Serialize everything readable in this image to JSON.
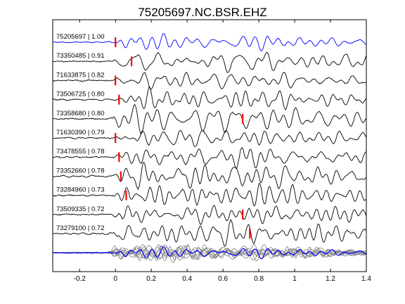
{
  "chart_data": {
    "type": "line",
    "title": "75205697.NC.BSR.EHZ",
    "xlabel": "",
    "ylabel": "",
    "xlim": [
      -0.35,
      1.4
    ],
    "x_ticks": [
      "-0.2",
      "0",
      "0.2",
      "0.4",
      "0.6",
      "0.8",
      "1",
      "1.2",
      "1.4"
    ],
    "x_tick_values": [
      -0.2,
      0,
      0.2,
      0.4,
      0.6,
      0.8,
      1.0,
      1.2,
      1.4
    ],
    "grid": false,
    "traces": [
      {
        "label": "75205697 | 1.00",
        "pick_time": 0.0,
        "color": "#0000ff"
      },
      {
        "label": "73350485 | 0.91",
        "pick_time": 0.09,
        "color": "#000000"
      },
      {
        "label": "71633875 | 0.82",
        "pick_time": 0.0,
        "color": "#000000"
      },
      {
        "label": "73506725 | 0.80",
        "pick_time": 0.02,
        "color": "#000000"
      },
      {
        "label": "73358680 | 0.80",
        "pick_time": 0.71,
        "color": "#000000"
      },
      {
        "label": "71630390 | 0.79",
        "pick_time": 0.0,
        "color": "#000000"
      },
      {
        "label": "73478555 | 0.78",
        "pick_time": 0.02,
        "color": "#000000"
      },
      {
        "label": "73352660 | 0.78",
        "pick_time": 0.03,
        "color": "#000000"
      },
      {
        "label": "73284960 | 0.73",
        "pick_time": 0.06,
        "color": "#000000"
      },
      {
        "label": "73509335 | 0.72",
        "pick_time": 0.71,
        "color": "#000000"
      },
      {
        "label": "73279100 | 0.72",
        "pick_time": 0.75,
        "color": "#000000"
      }
    ],
    "stack": {
      "label": "stacked overlay",
      "colors": [
        "#808080",
        "#0000ff"
      ]
    },
    "pick_color": "#ff0000"
  }
}
